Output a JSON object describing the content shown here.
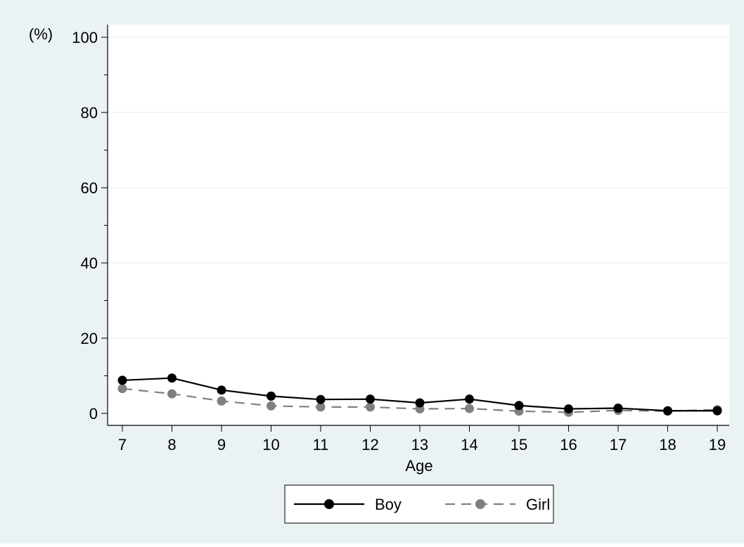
{
  "chart_data": {
    "type": "line",
    "title": "",
    "xlabel": "Age",
    "ylabel": "(%)",
    "x": [
      7,
      8,
      9,
      10,
      11,
      12,
      13,
      14,
      15,
      16,
      17,
      18,
      19
    ],
    "xticks": [
      "7",
      "8",
      "9",
      "10",
      "11",
      "12",
      "13",
      "14",
      "15",
      "16",
      "17",
      "18",
      "19"
    ],
    "yticks": [
      "0",
      "20",
      "40",
      "60",
      "80",
      "100"
    ],
    "ylim": [
      0,
      100
    ],
    "grid": true,
    "legend_position": "bottom",
    "series": [
      {
        "name": "Boy",
        "values": [
          8.8,
          9.4,
          6.2,
          4.6,
          3.7,
          3.8,
          2.8,
          3.8,
          2.1,
          1.2,
          1.4,
          0.7,
          0.7
        ],
        "color": "#000000",
        "dash": "solid"
      },
      {
        "name": "Girl",
        "values": [
          6.6,
          5.2,
          3.3,
          2.0,
          1.7,
          1.7,
          1.2,
          1.3,
          0.6,
          0.3,
          0.8,
          0.6,
          1.0
        ],
        "color": "#808080",
        "dash": "dashed"
      }
    ],
    "colors": {
      "outer_background": "#eaf2f3",
      "plot_background": "#ffffff",
      "gridline": "#eaf2f3"
    }
  }
}
